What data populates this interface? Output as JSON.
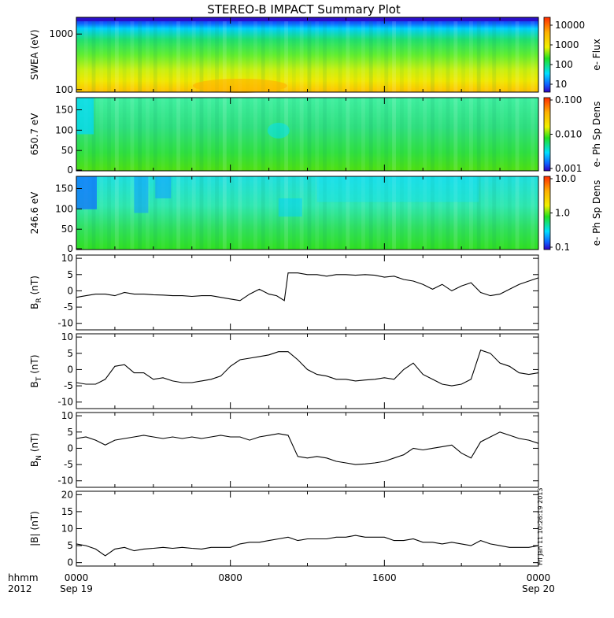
{
  "chart_data": {
    "title": "STEREO-B IMPACT Summary Plot",
    "x_axis": {
      "ticks": [
        "0000",
        "0800",
        "1600",
        "0000"
      ],
      "tick_dates": [
        "Sep 19",
        "",
        "",
        "Sep 20"
      ],
      "corner_label_top": "hhmm",
      "corner_label_bottom": "2012",
      "range_hours": [
        0,
        24
      ]
    },
    "stamp": "Fri Jan 11 10:26:19 2013",
    "panels": [
      {
        "type": "heatmap",
        "ylabel": "SWEA (eV)",
        "yscale": "log",
        "ylim": [
          90,
          2000
        ],
        "yticks": [
          "1000",
          "100"
        ],
        "colorbar": {
          "label": "e- Flux",
          "scale": "log",
          "ticks": [
            "10000",
            "1000",
            "100",
            "10"
          ]
        }
      },
      {
        "type": "heatmap",
        "ylabel": "650.7 eV",
        "ylim": [
          0,
          180
        ],
        "yticks": [
          "150",
          "100",
          "50",
          "0"
        ],
        "colorbar": {
          "label": "e- Ph Sp Dens",
          "scale": "log",
          "ticks": [
            "0.100",
            "0.010",
            "0.001"
          ]
        }
      },
      {
        "type": "heatmap",
        "ylabel": "246.6 eV",
        "ylim": [
          0,
          180
        ],
        "yticks": [
          "150",
          "100",
          "50",
          "0"
        ],
        "colorbar": {
          "label": "e- Ph Sp Dens",
          "scale": "log",
          "ticks": [
            "10.0",
            "1.0",
            "0.1"
          ]
        }
      },
      {
        "type": "line",
        "ylabel": "BR (nT)",
        "ylabel_main": "B",
        "ylabel_sub": "R",
        "ylabel_unit": "(nT)",
        "ylim": [
          -12,
          11
        ],
        "yticks": [
          "10",
          "5",
          "0",
          "-5",
          "-10"
        ],
        "x": [
          0,
          0.5,
          1,
          1.5,
          2,
          2.5,
          3,
          3.5,
          4,
          4.5,
          5,
          5.5,
          6,
          6.5,
          7,
          7.5,
          8,
          8.5,
          9,
          9.5,
          10,
          10.4,
          10.8,
          11,
          11.5,
          12,
          12.5,
          13,
          13.5,
          14,
          14.5,
          15,
          15.5,
          16,
          16.5,
          17,
          17.5,
          18,
          18.5,
          19,
          19.5,
          20,
          20.5,
          21,
          21.5,
          22,
          22.5,
          23,
          23.5,
          24
        ],
        "y": [
          -2,
          -1.5,
          -1,
          -1,
          -1.5,
          -0.5,
          -1,
          -1,
          -1.2,
          -1.3,
          -1.5,
          -1.5,
          -1.7,
          -1.5,
          -1.5,
          -2,
          -2.5,
          -3,
          -1,
          0.5,
          -1,
          -1.5,
          -3,
          5.5,
          5.5,
          5,
          5,
          4.5,
          5,
          5,
          4.8,
          5,
          4.8,
          4.2,
          4.5,
          3.5,
          3,
          2,
          0.5,
          2,
          0,
          1.5,
          2.5,
          -0.5,
          -1.5,
          -1,
          0.5,
          2,
          3,
          4
        ]
      },
      {
        "type": "line",
        "ylabel": "BT (nT)",
        "ylabel_main": "B",
        "ylabel_sub": "T",
        "ylabel_unit": "(nT)",
        "ylim": [
          -12,
          11
        ],
        "yticks": [
          "10",
          "5",
          "0",
          "-5",
          "-10"
        ],
        "x": [
          0,
          0.5,
          1,
          1.5,
          2,
          2.5,
          3,
          3.5,
          4,
          4.5,
          5,
          5.5,
          6,
          6.5,
          7,
          7.5,
          8,
          8.5,
          9,
          9.5,
          10,
          10.5,
          11,
          11.5,
          12,
          12.5,
          13,
          13.5,
          14,
          14.5,
          15,
          15.5,
          16,
          16.5,
          17,
          17.5,
          18,
          18.5,
          19,
          19.5,
          20,
          20.5,
          21,
          21.5,
          22,
          22.5,
          23,
          23.5,
          24
        ],
        "y": [
          -4,
          -4.5,
          -4.5,
          -3,
          1,
          1.5,
          -1,
          -1,
          -3,
          -2.5,
          -3.5,
          -4,
          -4,
          -3.5,
          -3,
          -2,
          1,
          3,
          3.5,
          4,
          4.5,
          5.5,
          5.5,
          3,
          0,
          -1.5,
          -2,
          -3,
          -3,
          -3.5,
          -3.2,
          -3,
          -2.5,
          -3,
          0,
          2,
          -1.5,
          -3,
          -4.5,
          -5,
          -4.5,
          -3,
          6,
          5,
          2,
          1,
          -1,
          -1.5,
          -1
        ]
      },
      {
        "type": "line",
        "ylabel": "BN (nT)",
        "ylabel_main": "B",
        "ylabel_sub": "N",
        "ylabel_unit": "(nT)",
        "ylim": [
          -12,
          11
        ],
        "yticks": [
          "10",
          "5",
          "0",
          "-5",
          "-10"
        ],
        "x": [
          0,
          0.5,
          1,
          1.5,
          2,
          2.5,
          3,
          3.5,
          4,
          4.5,
          5,
          5.5,
          6,
          6.5,
          7,
          7.5,
          8,
          8.5,
          9,
          9.5,
          10,
          10.5,
          11,
          11.5,
          12,
          12.5,
          13,
          13.5,
          14,
          14.5,
          15,
          15.5,
          16,
          16.5,
          17,
          17.5,
          18,
          18.5,
          19,
          19.5,
          20,
          20.5,
          21,
          21.5,
          22,
          22.5,
          23,
          23.5,
          24
        ],
        "y": [
          3,
          3.5,
          2.5,
          1,
          2.5,
          3,
          3.5,
          4,
          3.5,
          3,
          3.5,
          3,
          3.5,
          3,
          3.5,
          4,
          3.5,
          3.5,
          2.5,
          3.5,
          4,
          4.5,
          4,
          -2.5,
          -3,
          -2.5,
          -3,
          -4,
          -4.5,
          -5,
          -4.8,
          -4.5,
          -4,
          -3,
          -2,
          0,
          -0.5,
          0,
          0.5,
          1,
          -1.5,
          -3,
          2,
          3.5,
          5,
          4,
          3,
          2.5,
          1.5
        ]
      },
      {
        "type": "line",
        "ylabel": "|B| (nT)",
        "ylabel_main": "|B|",
        "ylabel_sub": "",
        "ylabel_unit": "(nT)",
        "ylim": [
          -1,
          21
        ],
        "yticks": [
          "20",
          "15",
          "10",
          "5",
          "0"
        ],
        "x": [
          0,
          0.5,
          1,
          1.5,
          2,
          2.5,
          3,
          3.5,
          4,
          4.5,
          5,
          5.5,
          6,
          6.5,
          7,
          7.5,
          8,
          8.5,
          9,
          9.5,
          10,
          10.5,
          11,
          11.5,
          12,
          12.5,
          13,
          13.5,
          14,
          14.5,
          15,
          15.5,
          16,
          16.5,
          17,
          17.5,
          18,
          18.5,
          19,
          19.5,
          20,
          20.5,
          21,
          21.5,
          22,
          22.5,
          23,
          23.5,
          24
        ],
        "y": [
          5.5,
          5,
          4,
          2,
          4,
          4.5,
          3.5,
          4,
          4.2,
          4.5,
          4.2,
          4.5,
          4.2,
          4,
          4.5,
          4.5,
          4.5,
          5.5,
          6,
          6,
          6.5,
          7,
          7.5,
          6.5,
          7,
          7,
          7,
          7.5,
          7.5,
          8,
          7.5,
          7.5,
          7.5,
          6.5,
          6.5,
          7,
          6,
          6,
          5.5,
          6,
          5.5,
          5,
          6.5,
          5.5,
          5,
          4.5,
          4.5,
          4.5,
          5
        ]
      }
    ]
  }
}
